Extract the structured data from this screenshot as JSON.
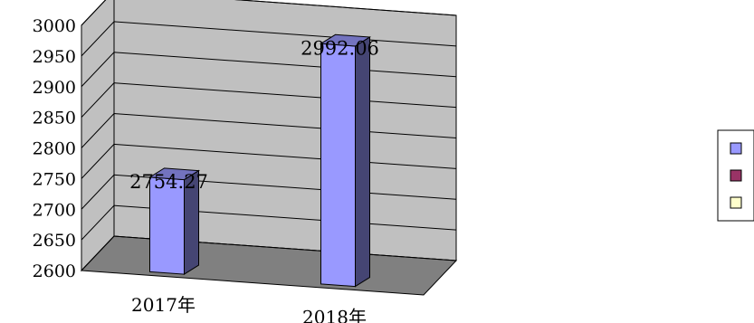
{
  "chart_data": {
    "type": "bar",
    "style": "3d-column",
    "categories": [
      "2017年",
      "2018年"
    ],
    "series": [
      {
        "values": [
          2754.27,
          2992.06
        ],
        "color": "#9999FF"
      }
    ],
    "data_labels": [
      "2754.27",
      "2992.06"
    ],
    "y_ticks": [
      "2600",
      "2650",
      "2700",
      "2750",
      "2800",
      "2850",
      "2900",
      "2950",
      "3000"
    ],
    "ylim": [
      2600,
      3000
    ],
    "grid": true,
    "legend": {
      "placement": "right",
      "entries": [
        {
          "color": "#9999FF"
        },
        {
          "color": "#993366"
        },
        {
          "color": "#FFFFCC"
        }
      ]
    },
    "colors": {
      "back_wall": "#C0C0C0",
      "side_wall": "#C0C0C0",
      "floor": "#808080",
      "gridline": "#000000"
    }
  }
}
